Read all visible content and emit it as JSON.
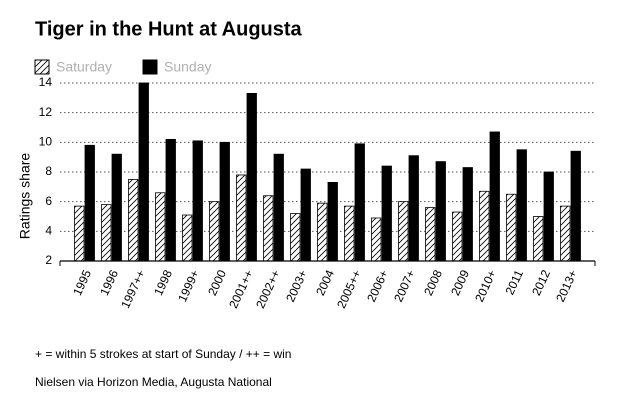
{
  "chart_data": {
    "type": "bar",
    "title": "Tiger in the Hunt at Augusta",
    "y_label": "Ratings share",
    "categories": [
      "1995",
      "1996",
      "1997++",
      "1998",
      "1999+",
      "2000",
      "2001++",
      "2002++",
      "2003+",
      "2004",
      "2005++",
      "2006+",
      "2007+",
      "2008",
      "2009",
      "2010+",
      "2011",
      "2012",
      "2013+"
    ],
    "series": [
      {
        "name": "Saturday",
        "color": "#000000",
        "style": "hatched",
        "values": [
          5.7,
          5.8,
          7.5,
          6.6,
          5.1,
          6.0,
          7.8,
          6.4,
          5.2,
          5.9,
          5.7,
          4.9,
          6.0,
          5.6,
          5.3,
          6.7,
          6.5,
          5.0,
          5.7
        ]
      },
      {
        "name": "Sunday",
        "color": "#000000",
        "style": "solid",
        "values": [
          9.8,
          9.2,
          14.0,
          10.2,
          10.1,
          10.0,
          13.3,
          9.2,
          8.2,
          7.3,
          9.9,
          8.4,
          9.1,
          8.7,
          8.3,
          10.7,
          9.5,
          8.0,
          9.4
        ]
      }
    ],
    "ylim": [
      2,
      14
    ],
    "yticks": [
      2,
      4,
      6,
      8,
      10,
      12,
      14
    ],
    "grid": true,
    "legend": "top-left",
    "notes": [
      "+ = within 5 strokes at start of Sunday / ++ = win",
      "Nielsen via Horizon Media, Augusta National"
    ]
  }
}
